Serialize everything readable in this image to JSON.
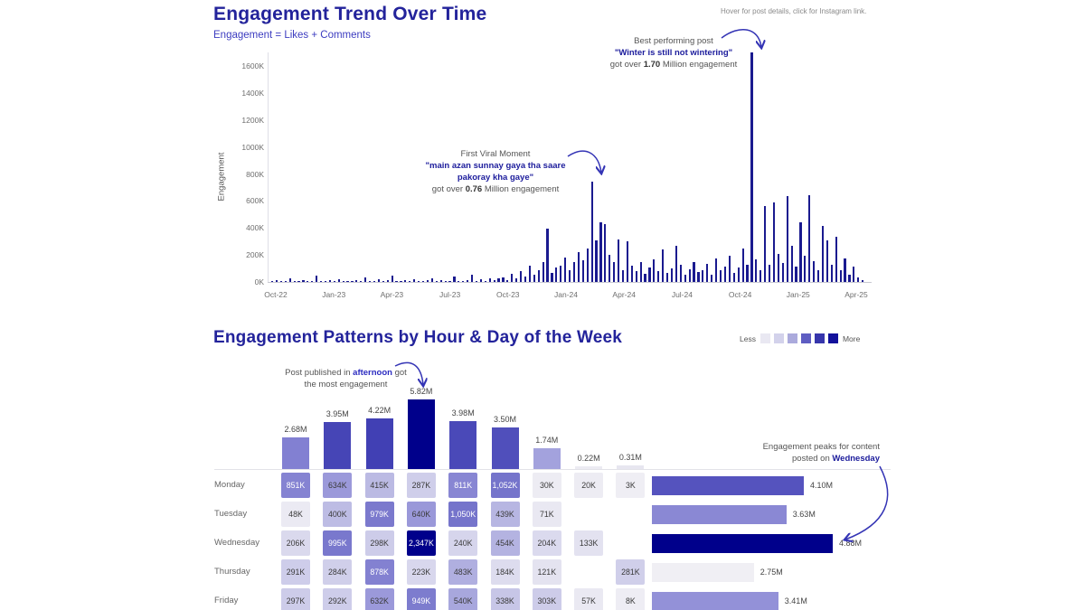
{
  "header": {
    "title": "Engagement Trend Over Time",
    "subtitle": "Engagement = Likes + Comments",
    "hint": "Hover for post details, click for Instagram link."
  },
  "section2": {
    "title": "Engagement Patterns by Hour & Day of the Week",
    "legend": {
      "less": "Less",
      "more": "More",
      "swatches": [
        "#E9E8F2",
        "#D3D2EB",
        "#ABAADC",
        "#5E5DC2",
        "#3736AC",
        "#12119B"
      ]
    }
  },
  "annotations": {
    "viral": {
      "title": "First Viral Moment",
      "quote": "\"main azan sunnay gaya tha saare pakoray kha gaye\"",
      "got_prefix": "got over ",
      "got_bold": "0.76",
      "got_suffix": " Million engagement"
    },
    "best": {
      "title": "Best performing post",
      "quote": "\"Winter is still not wintering\"",
      "got_prefix": "got over ",
      "got_bold": "1.70",
      "got_suffix": " Million engagement"
    },
    "afternoon": {
      "pre": "Post published in ",
      "bold": "afternoon",
      "post": " got",
      "line2": "the most engagement"
    },
    "wednesday": {
      "line1": "Engagement peaks for content",
      "pre": "posted on ",
      "bold": "Wednesday"
    }
  },
  "colors": {
    "title": "#23239B",
    "subtitle": "#3C3CC0",
    "trend_bar": "#1A1A8F",
    "accent_bold": "#1C1C9C",
    "arrow": "#3434B5",
    "axis_line": "#D8D8DF",
    "heat_dark_text": "#3A3A3A",
    "heat_light_text": "#FFFFFF"
  },
  "chart_data": [
    {
      "id": "engagement-trend",
      "type": "bar",
      "title": "Engagement Trend Over Time",
      "xlabel": "",
      "ylabel": "Engagement",
      "ylim_k": [
        0,
        1700
      ],
      "yticks_k": [
        0,
        200,
        400,
        600,
        800,
        1000,
        1200,
        1400,
        1600
      ],
      "ytick_labels": [
        "0K",
        "200K",
        "400K",
        "600K",
        "800K",
        "1000K",
        "1200K",
        "1400K",
        "1600K"
      ],
      "xticks": [
        "Oct-22",
        "Jan-23",
        "Apr-23",
        "Jul-23",
        "Oct-23",
        "Jan-24",
        "Apr-24",
        "Jul-24",
        "Oct-24",
        "Jan-25",
        "Apr-25"
      ],
      "resolution": "weekly-approximate",
      "values_k": [
        5,
        12,
        3,
        8,
        30,
        4,
        6,
        15,
        2,
        10,
        45,
        3,
        7,
        12,
        5,
        20,
        4,
        9,
        3,
        14,
        6,
        35,
        5,
        8,
        18,
        3,
        12,
        50,
        6,
        9,
        15,
        4,
        22,
        7,
        3,
        11,
        28,
        5,
        16,
        8,
        4,
        40,
        9,
        6,
        13,
        55,
        7,
        18,
        10,
        25,
        12,
        30,
        35,
        15,
        60,
        25,
        80,
        40,
        120,
        55,
        90,
        150,
        395,
        70,
        110,
        120,
        180,
        90,
        150,
        220,
        160,
        250,
        744,
        310,
        445,
        430,
        200,
        150,
        315,
        90,
        300,
        120,
        80,
        150,
        60,
        110,
        170,
        80,
        240,
        70,
        100,
        270,
        130,
        55,
        95,
        145,
        75,
        85,
        135,
        55,
        175,
        90,
        115,
        195,
        65,
        105,
        245,
        125,
        1700,
        170,
        85,
        560,
        125,
        590,
        210,
        140,
        635,
        270,
        115,
        445,
        195,
        640,
        155,
        85,
        415,
        305,
        125,
        335,
        85,
        175,
        55,
        115,
        35,
        15
      ],
      "grid": false,
      "legend_position": "none"
    },
    {
      "id": "hour-of-day-totals",
      "type": "bar",
      "values_m": [
        2.68,
        3.95,
        4.22,
        5.82,
        3.98,
        3.5,
        1.74,
        0.22,
        0.31
      ],
      "labels": [
        "2.68M",
        "3.95M",
        "4.22M",
        "5.82M",
        "3.98M",
        "3.50M",
        "1.74M",
        "0.22M",
        "0.31M"
      ],
      "bar_colors": [
        "#8280D2",
        "#4645B6",
        "#4140B4",
        "#00008B",
        "#4A49B8",
        "#504FBB",
        "#A3A2DD",
        "#ECEBF2",
        "#E7E6F0"
      ]
    },
    {
      "id": "day-hour-heatmap",
      "type": "heatmap",
      "rows": [
        "Monday",
        "Tuesday",
        "Wednesday",
        "Thursday",
        "Friday"
      ],
      "values_k": [
        [
          851,
          634,
          415,
          287,
          811,
          1052,
          30,
          20,
          3
        ],
        [
          48,
          400,
          979,
          640,
          1050,
          439,
          71,
          null,
          null
        ],
        [
          206,
          995,
          298,
          2347,
          240,
          454,
          204,
          133,
          null
        ],
        [
          291,
          284,
          878,
          223,
          483,
          184,
          121,
          null,
          281
        ],
        [
          297,
          292,
          632,
          949,
          540,
          338,
          303,
          57,
          8
        ]
      ],
      "labels": [
        [
          "851K",
          "634K",
          "415K",
          "287K",
          "811K",
          "1,052K",
          "30K",
          "20K",
          "3K"
        ],
        [
          "48K",
          "400K",
          "979K",
          "640K",
          "1,050K",
          "439K",
          "71K",
          null,
          null
        ],
        [
          "206K",
          "995K",
          "298K",
          "2,347K",
          "240K",
          "454K",
          "204K",
          "133K",
          null
        ],
        [
          "291K",
          "284K",
          "878K",
          "223K",
          "483K",
          "184K",
          "121K",
          null,
          "281K"
        ],
        [
          "297K",
          "292K",
          "632K",
          "949K",
          "540K",
          "338K",
          "303K",
          "57K",
          "8K"
        ]
      ],
      "scale_stops": [
        [
          0,
          "#EFEEF4"
        ],
        [
          100,
          "#E7E6F1"
        ],
        [
          250,
          "#D5D4EC"
        ],
        [
          450,
          "#B5B4E1"
        ],
        [
          700,
          "#918FD7"
        ],
        [
          1100,
          "#7170C9"
        ],
        [
          2347,
          "#00008B"
        ]
      ],
      "white_text_min_k": 700
    },
    {
      "id": "day-of-week-totals",
      "type": "bar",
      "orientation": "horizontal",
      "categories": [
        "Monday",
        "Tuesday",
        "Wednesday",
        "Thursday",
        "Friday"
      ],
      "values_m": [
        4.1,
        3.63,
        4.88,
        2.75,
        3.41
      ],
      "labels": [
        "4.10M",
        "3.63M",
        "4.88M",
        "2.75M",
        "3.41M"
      ],
      "bar_colors": [
        "#5553BE",
        "#8A88D4",
        "#00008B",
        "#F0EFF4",
        "#9391D8"
      ]
    }
  ]
}
